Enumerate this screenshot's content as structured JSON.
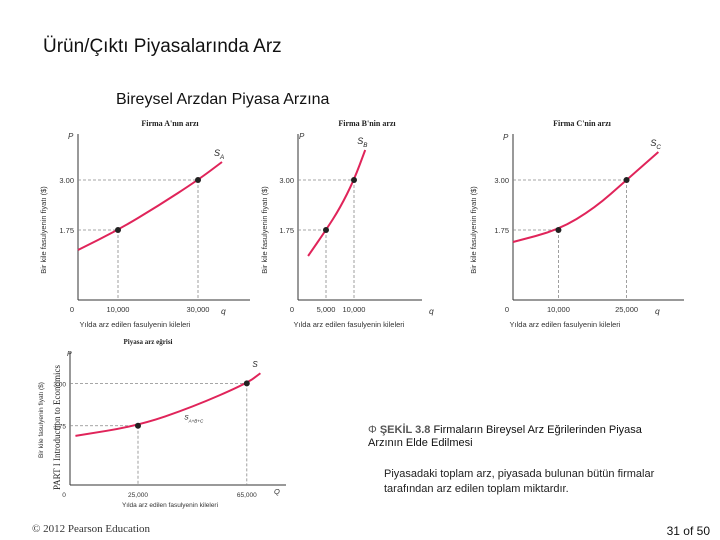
{
  "slide": {
    "title": "Ürün/Çıktı Piyasalarında Arz",
    "subtitle": "Bireysel Arzdan Piyasa Arzına",
    "side_label": "PART I Introduction to Economics",
    "copyright": "© 2012 Pearson Education",
    "page": "31 of 50",
    "caption_label": "ŞEKİL 3.8",
    "caption_title": "Firmaların Bireysel Arz Eğrilerinden Piyasa Arzının Elde Edilmesi",
    "caption_body": "Piyasadaki toplam arz, piyasada bulunan bütün firmalar tarafından arz edilen toplam miktardır.",
    "caption_icon": "circle-phi-icon"
  },
  "chart_data": [
    {
      "type": "line",
      "title": "Firma A'nın arzı",
      "ylabel": "Bir kile fasulyenin fiyatı ($)",
      "xlabel": "Yılda arz edilen fasulyenin kileleri",
      "yaxis_letter": "P",
      "xaxis_letter": "q",
      "curve_label": "S_A",
      "xlim": [
        0,
        40000
      ],
      "ylim": [
        0,
        4.0
      ],
      "x_ticks": [
        "10,000",
        "30,000"
      ],
      "y_ticks": [
        "1.75",
        "3.00"
      ],
      "origin_label": "0",
      "points": [
        {
          "x": 10000,
          "y": 1.75
        },
        {
          "x": 30000,
          "y": 3.0
        }
      ],
      "curve": [
        {
          "x": 0,
          "y": 1.25
        },
        {
          "x": 10000,
          "y": 1.75
        },
        {
          "x": 20000,
          "y": 2.35
        },
        {
          "x": 30000,
          "y": 3.0
        },
        {
          "x": 36000,
          "y": 3.45
        }
      ]
    },
    {
      "type": "line",
      "title": "Firma B'nin arzı",
      "ylabel": "Bir kile fasulyenin fiyatı ($)",
      "xlabel": "Yılda arz edilen fasulyenin kileleri",
      "yaxis_letter": "P",
      "xaxis_letter": "q",
      "curve_label": "S_B",
      "xlim": [
        0,
        20000
      ],
      "ylim": [
        0,
        4.0
      ],
      "x_ticks": [
        "5,000",
        "10,000"
      ],
      "y_ticks": [
        "1.75",
        "3.00"
      ],
      "origin_label": "0",
      "points": [
        {
          "x": 5000,
          "y": 1.75
        },
        {
          "x": 10000,
          "y": 3.0
        }
      ],
      "curve": [
        {
          "x": 1800,
          "y": 1.1
        },
        {
          "x": 5000,
          "y": 1.75
        },
        {
          "x": 7500,
          "y": 2.3
        },
        {
          "x": 10000,
          "y": 3.0
        },
        {
          "x": 12000,
          "y": 3.75
        }
      ]
    },
    {
      "type": "line",
      "title": "Firma C'nin arzı",
      "ylabel": "Bir kile fasulyenin fiyatı ($)",
      "xlabel": "Yılda arz edilen fasulyenin kileleri",
      "yaxis_letter": "P",
      "xaxis_letter": "q",
      "curve_label": "S_C",
      "xlim": [
        0,
        35000
      ],
      "ylim": [
        0,
        4.0
      ],
      "x_ticks": [
        "10,000",
        "25,000"
      ],
      "y_ticks": [
        "1.75",
        "3.00"
      ],
      "origin_label": "0",
      "points": [
        {
          "x": 10000,
          "y": 1.75
        },
        {
          "x": 25000,
          "y": 3.0
        }
      ],
      "curve": [
        {
          "x": 0,
          "y": 1.45
        },
        {
          "x": 10000,
          "y": 1.75
        },
        {
          "x": 18000,
          "y": 2.3
        },
        {
          "x": 25000,
          "y": 3.0
        },
        {
          "x": 32000,
          "y": 3.7
        }
      ]
    },
    {
      "type": "line",
      "title": "Piyasa arz eğrisi",
      "ylabel": "Bir kile fasulyenin fiyatı ($)",
      "xlabel": "Yılda arz edilen fasulyenin kileleri",
      "yaxis_letter": "P",
      "xaxis_letter": "Q",
      "curve_label": "S",
      "curve_label_mid": "S_A+B+C",
      "xlim": [
        0,
        75000
      ],
      "ylim": [
        0,
        3.75
      ],
      "x_ticks": [
        "25,000",
        "65,000"
      ],
      "y_ticks": [
        "1.75",
        "3.00"
      ],
      "origin_label": "0",
      "points": [
        {
          "x": 25000,
          "y": 1.75
        },
        {
          "x": 65000,
          "y": 3.0
        }
      ],
      "curve": [
        {
          "x": 2000,
          "y": 1.45
        },
        {
          "x": 25000,
          "y": 1.75
        },
        {
          "x": 45000,
          "y": 2.3
        },
        {
          "x": 65000,
          "y": 3.0
        },
        {
          "x": 70000,
          "y": 3.3
        }
      ]
    }
  ]
}
